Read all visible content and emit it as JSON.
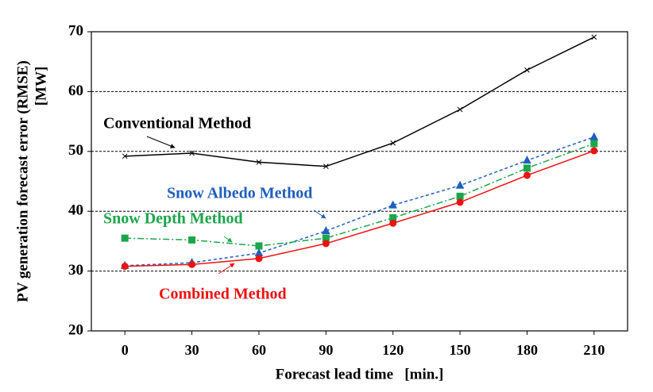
{
  "chart_data": {
    "type": "line",
    "x_label": "Forecast lead time   [min.]",
    "y_label": [
      "PV generation forecast error (RMSE)",
      "[MW]"
    ],
    "x": [
      0,
      30,
      60,
      90,
      120,
      150,
      180,
      210
    ],
    "xlim": [
      -15,
      225
    ],
    "xticks": [
      0,
      30,
      60,
      90,
      120,
      150,
      180,
      210
    ],
    "ylim": [
      20,
      70
    ],
    "yticks": [
      20,
      30,
      40,
      50,
      60,
      70
    ],
    "grid": true,
    "series": [
      {
        "name": "Conventional Method",
        "color": "#000000",
        "line": "solid",
        "marker": "x",
        "values": [
          49.2,
          49.7,
          48.2,
          47.5,
          51.4,
          57.0,
          63.6,
          69.1
        ]
      },
      {
        "name": "Snow Albedo Method",
        "color": "#1f5fbf",
        "line": "dashed",
        "marker": "triangle",
        "values": [
          30.9,
          31.4,
          33.0,
          36.7,
          41.0,
          44.3,
          48.5,
          52.4
        ]
      },
      {
        "name": "Snow Depth Method",
        "color": "#1aa64a",
        "line": "dashdot",
        "marker": "square",
        "values": [
          35.5,
          35.2,
          34.2,
          35.5,
          38.9,
          42.5,
          47.2,
          51.3
        ]
      },
      {
        "name": "Combined Method",
        "color": "#ee1111",
        "line": "solid",
        "marker": "circle",
        "values": [
          30.8,
          31.1,
          32.1,
          34.6,
          38.0,
          41.5,
          46.0,
          50.1
        ]
      }
    ]
  }
}
